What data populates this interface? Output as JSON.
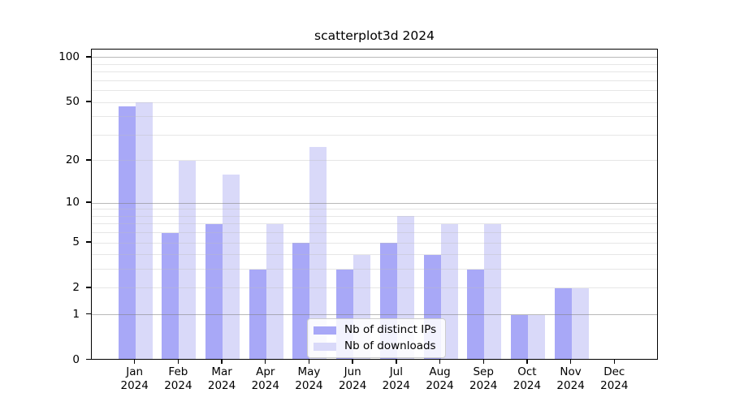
{
  "chart_data": {
    "type": "bar",
    "title": "scatterplot3d 2024",
    "scale": "log1p",
    "year": "2024",
    "months": [
      "Jan",
      "Feb",
      "Mar",
      "Apr",
      "May",
      "Jun",
      "Jul",
      "Aug",
      "Sep",
      "Oct",
      "Nov",
      "Dec"
    ],
    "categories": [
      "Jan 2024",
      "Feb 2024",
      "Mar 2024",
      "Apr 2024",
      "May 2024",
      "Jun 2024",
      "Jul 2024",
      "Aug 2024",
      "Sep 2024",
      "Oct 2024",
      "Nov 2024",
      "Dec 2024"
    ],
    "series": [
      {
        "name": "Nb of distinct IPs",
        "color": "#a8a8f7",
        "values": [
          47,
          6,
          7,
          3,
          5,
          3,
          5,
          4,
          3,
          1,
          2,
          0
        ]
      },
      {
        "name": "Nb of downloads",
        "color": "#d9d9f9",
        "values": [
          50,
          20,
          16,
          7,
          25,
          4,
          8,
          7,
          7,
          1,
          2,
          0
        ]
      }
    ],
    "y_ticks": [
      100,
      50,
      20,
      10,
      5,
      2,
      1,
      0
    ],
    "grid_major": [
      1,
      10,
      100
    ],
    "grid_minor": [
      2,
      3,
      4,
      5,
      6,
      7,
      8,
      9,
      20,
      30,
      40,
      50,
      60,
      70,
      80,
      90
    ],
    "ylim": [
      0,
      100
    ],
    "grid": true,
    "legend_position": "lower-center-inside",
    "colors": {
      "axis": "#000000",
      "grid_major": "#b0b0b0",
      "grid_minor": "#e7e7e7",
      "background": "#ffffff"
    }
  }
}
